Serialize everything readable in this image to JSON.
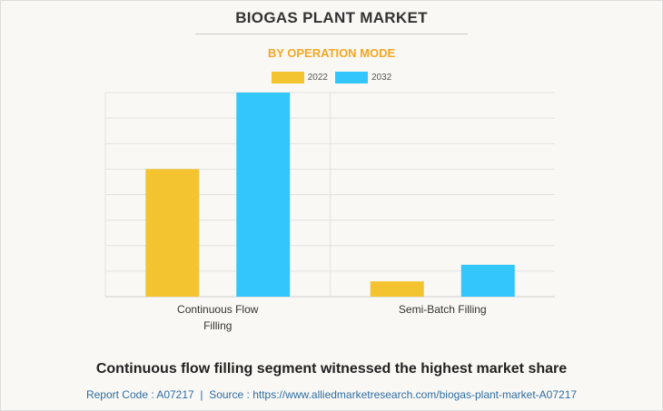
{
  "chart_data": {
    "type": "bar",
    "title": "BIOGAS PLANT MARKET",
    "subtitle": "BY OPERATION MODE",
    "categories": [
      "Continuous Flow Filling",
      "Semi-Batch Filling"
    ],
    "category_lines": [
      [
        "Continuous Flow",
        "Filling"
      ],
      [
        "Semi-Batch Filling"
      ]
    ],
    "series": [
      {
        "name": "2022",
        "color": "#f4c430",
        "values": [
          50,
          6
        ]
      },
      {
        "name": "2032",
        "color": "#33c6fc",
        "values": [
          80,
          12.5
        ]
      }
    ],
    "ylim": [
      0,
      80
    ],
    "gridlines": 8,
    "xlabel": "",
    "ylabel": "",
    "legend_position": "top-center",
    "grid": true
  },
  "headline": "Continuous flow filling segment witnessed the highest market share",
  "footer": {
    "report_code": "Report Code : A07217",
    "separator": "|",
    "source": "Source : https://www.alliedmarketresearch.com/biogas-plant-market-A07217"
  }
}
